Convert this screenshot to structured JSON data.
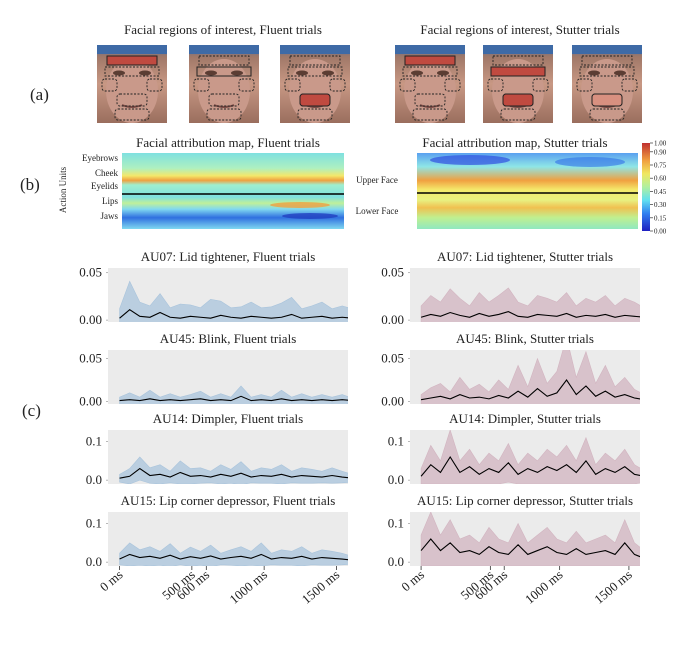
{
  "panel_labels": [
    "(a)",
    "(b)",
    "(c)"
  ],
  "face_titles": [
    "Facial regions of interest, Fluent trials",
    "Facial regions of interest, Stutter trials"
  ],
  "heatmaps": [
    {
      "title": "Facial attribution map, Fluent trials",
      "y_label": "Action Units",
      "row_labels": [
        "Eyebrows",
        "Cheek",
        "Eyelids",
        "Lips",
        "Jaws"
      ]
    },
    {
      "title": "Facial attribution map, Stutter trials",
      "row_labels": [
        "Upper Face",
        "Lower Face"
      ]
    }
  ],
  "colorbar": {
    "ticks": [
      {
        "value": 1,
        "label": "1.00"
      },
      {
        "value": 0.9,
        "label": "0.90"
      },
      {
        "value": 0.75,
        "label": "0.75"
      },
      {
        "value": 0.6,
        "label": "0.60"
      },
      {
        "value": 0.45,
        "label": "0.45"
      },
      {
        "value": 0.3,
        "label": "0.30"
      },
      {
        "value": 0.15,
        "label": "0.15"
      },
      {
        "value": 0,
        "label": "0.00"
      }
    ],
    "lim": [
      0,
      1
    ]
  },
  "chart_data": [
    {
      "type": "line",
      "title": "AU07: Lid tightener, Fluent trials",
      "x": [
        0,
        70,
        140,
        210,
        280,
        350,
        420,
        490,
        560,
        630,
        700,
        770,
        840,
        910,
        980,
        1050,
        1120,
        1190,
        1260,
        1330,
        1400,
        1470,
        1540,
        1610
      ],
      "xlim": [
        -80,
        1580
      ],
      "ylim": [
        -0.002,
        0.055
      ],
      "yticks": [
        {
          "value": 0,
          "label": "0.00"
        },
        {
          "value": 0.05,
          "label": "0.05"
        }
      ],
      "series": [
        {
          "color": "#000000",
          "band_color": "#a9c4dc",
          "values": [
            0.002,
            0.011,
            0.004,
            0.003,
            0.008,
            0.003,
            0.002,
            0.004,
            0.003,
            0.002,
            0.005,
            0.003,
            0.002,
            0.004,
            0.003,
            0.002,
            0.003,
            0.006,
            0.002,
            0.003,
            0.004,
            0.002,
            0.003,
            0.002
          ],
          "error": [
            0.01,
            0.03,
            0.015,
            0.012,
            0.02,
            0.01,
            0.015,
            0.012,
            0.01,
            0.02,
            0.015,
            0.01,
            0.012,
            0.015,
            0.01,
            0.012,
            0.015,
            0.018,
            0.01,
            0.012,
            0.015,
            0.01,
            0.012,
            0.01
          ]
        }
      ]
    },
    {
      "type": "line",
      "title": "AU07: Lid tightener, Stutter trials",
      "x": [
        0,
        70,
        140,
        210,
        280,
        350,
        420,
        490,
        560,
        630,
        700,
        770,
        840,
        910,
        980,
        1050,
        1120,
        1190,
        1260,
        1330,
        1400,
        1470,
        1540,
        1610
      ],
      "xlim": [
        -80,
        1580
      ],
      "ylim": [
        -0.002,
        0.055
      ],
      "yticks": [
        {
          "value": 0,
          "label": "0.00"
        },
        {
          "value": 0.05,
          "label": "0.05"
        }
      ],
      "series": [
        {
          "color": "#000000",
          "band_color": "#d2b4c0",
          "values": [
            0.003,
            0.006,
            0.004,
            0.008,
            0.005,
            0.003,
            0.007,
            0.004,
            0.006,
            0.009,
            0.004,
            0.003,
            0.006,
            0.005,
            0.004,
            0.007,
            0.003,
            0.005,
            0.004,
            0.006,
            0.003,
            0.005,
            0.004,
            0.003
          ],
          "error": [
            0.012,
            0.02,
            0.015,
            0.025,
            0.018,
            0.012,
            0.022,
            0.015,
            0.02,
            0.025,
            0.015,
            0.012,
            0.02,
            0.018,
            0.015,
            0.022,
            0.012,
            0.018,
            0.015,
            0.02,
            0.012,
            0.018,
            0.015,
            0.01
          ]
        }
      ]
    },
    {
      "type": "line",
      "title": "AU45: Blink, Fluent trials",
      "x": [
        0,
        70,
        140,
        210,
        280,
        350,
        420,
        490,
        560,
        630,
        700,
        770,
        840,
        910,
        980,
        1050,
        1120,
        1190,
        1260,
        1330,
        1400,
        1470,
        1540,
        1610
      ],
      "xlim": [
        -80,
        1580
      ],
      "ylim": [
        -0.003,
        0.06
      ],
      "yticks": [
        {
          "value": 0,
          "label": "0.00"
        },
        {
          "value": 0.05,
          "label": "0.05"
        }
      ],
      "series": [
        {
          "color": "#000000",
          "band_color": "#a9c4dc",
          "values": [
            0.001,
            0.002,
            0.001,
            0.003,
            0.001,
            0.002,
            0.001,
            0.002,
            0.003,
            0.001,
            0.002,
            0.001,
            0.006,
            0.001,
            0.002,
            0.001,
            0.003,
            0.001,
            0.002,
            0.001,
            0.002,
            0.001,
            0.002,
            0.001
          ],
          "error": [
            0.004,
            0.008,
            0.004,
            0.01,
            0.004,
            0.007,
            0.004,
            0.006,
            0.009,
            0.004,
            0.007,
            0.004,
            0.012,
            0.004,
            0.006,
            0.004,
            0.01,
            0.004,
            0.007,
            0.004,
            0.006,
            0.004,
            0.006,
            0.003
          ]
        }
      ]
    },
    {
      "type": "line",
      "title": "AU45: Blink, Stutter trials",
      "x": [
        0,
        70,
        140,
        210,
        280,
        350,
        420,
        490,
        560,
        630,
        700,
        770,
        840,
        910,
        980,
        1050,
        1120,
        1190,
        1260,
        1330,
        1400,
        1470,
        1540,
        1610
      ],
      "xlim": [
        -80,
        1580
      ],
      "ylim": [
        -0.003,
        0.06
      ],
      "yticks": [
        {
          "value": 0,
          "label": "0.00"
        },
        {
          "value": 0.05,
          "label": "0.05"
        }
      ],
      "series": [
        {
          "color": "#000000",
          "band_color": "#d2b4c0",
          "values": [
            0.002,
            0.004,
            0.006,
            0.003,
            0.008,
            0.004,
            0.005,
            0.003,
            0.007,
            0.004,
            0.012,
            0.005,
            0.015,
            0.006,
            0.01,
            0.025,
            0.008,
            0.018,
            0.006,
            0.012,
            0.005,
            0.008,
            0.004,
            0.002
          ],
          "error": [
            0.006,
            0.012,
            0.015,
            0.008,
            0.02,
            0.01,
            0.015,
            0.008,
            0.018,
            0.01,
            0.03,
            0.012,
            0.035,
            0.015,
            0.025,
            0.05,
            0.02,
            0.04,
            0.015,
            0.03,
            0.012,
            0.02,
            0.01,
            0.006
          ]
        }
      ]
    },
    {
      "type": "line",
      "title": "AU14: Dimpler, Fluent trials",
      "x": [
        0,
        70,
        140,
        210,
        280,
        350,
        420,
        490,
        560,
        630,
        700,
        770,
        840,
        910,
        980,
        1050,
        1120,
        1190,
        1260,
        1330,
        1400,
        1470,
        1540,
        1610
      ],
      "xlim": [
        -80,
        1580
      ],
      "ylim": [
        -0.01,
        0.13
      ],
      "yticks": [
        {
          "value": 0,
          "label": "0.0"
        },
        {
          "value": 0.1,
          "label": "0.1"
        }
      ],
      "series": [
        {
          "color": "#000000",
          "band_color": "#a9c4dc",
          "values": [
            0.005,
            0.01,
            0.03,
            0.012,
            0.015,
            0.008,
            0.02,
            0.01,
            0.012,
            0.008,
            0.015,
            0.01,
            0.018,
            0.008,
            0.012,
            0.01,
            0.015,
            0.008,
            0.012,
            0.01,
            0.008,
            0.012,
            0.008,
            0.005
          ],
          "error": [
            0.01,
            0.02,
            0.03,
            0.02,
            0.025,
            0.015,
            0.03,
            0.02,
            0.02,
            0.015,
            0.025,
            0.018,
            0.03,
            0.015,
            0.02,
            0.018,
            0.025,
            0.015,
            0.02,
            0.018,
            0.015,
            0.02,
            0.015,
            0.01
          ]
        }
      ]
    },
    {
      "type": "line",
      "title": "AU14: Dimpler, Stutter trials",
      "x": [
        0,
        70,
        140,
        210,
        280,
        350,
        420,
        490,
        560,
        630,
        700,
        770,
        840,
        910,
        980,
        1050,
        1120,
        1190,
        1260,
        1330,
        1400,
        1470,
        1540,
        1610
      ],
      "xlim": [
        -80,
        1580
      ],
      "ylim": [
        -0.01,
        0.13
      ],
      "yticks": [
        {
          "value": 0,
          "label": "0.0"
        },
        {
          "value": 0.1,
          "label": "0.1"
        }
      ],
      "series": [
        {
          "color": "#000000",
          "band_color": "#d2b4c0",
          "values": [
            0.01,
            0.04,
            0.02,
            0.06,
            0.02,
            0.035,
            0.015,
            0.03,
            0.02,
            0.045,
            0.015,
            0.03,
            0.02,
            0.035,
            0.025,
            0.04,
            0.02,
            0.05,
            0.015,
            0.03,
            0.02,
            0.035,
            0.015,
            0.01
          ],
          "error": [
            0.02,
            0.05,
            0.03,
            0.07,
            0.03,
            0.045,
            0.025,
            0.04,
            0.03,
            0.05,
            0.025,
            0.04,
            0.03,
            0.045,
            0.035,
            0.05,
            0.03,
            0.06,
            0.025,
            0.04,
            0.03,
            0.045,
            0.025,
            0.015
          ]
        }
      ]
    },
    {
      "type": "line",
      "title": "AU15: Lip corner depressor, Fluent trials",
      "x": [
        0,
        70,
        140,
        210,
        280,
        350,
        420,
        490,
        560,
        630,
        700,
        770,
        840,
        910,
        980,
        1050,
        1120,
        1190,
        1260,
        1330,
        1400,
        1470,
        1540,
        1610
      ],
      "xlim": [
        -80,
        1580
      ],
      "ylim": [
        -0.01,
        0.13
      ],
      "yticks": [
        {
          "value": 0,
          "label": "0.0"
        },
        {
          "value": 0.1,
          "label": "0.1"
        }
      ],
      "xticks": [
        {
          "value": 0,
          "label": "0 ms"
        },
        {
          "value": 500,
          "label": "500 ms"
        },
        {
          "value": 600,
          "label": "600 ms"
        },
        {
          "value": 1000,
          "label": "1000 ms"
        },
        {
          "value": 1500,
          "label": "1500 ms"
        }
      ],
      "series": [
        {
          "color": "#000000",
          "band_color": "#a9c4dc",
          "values": [
            0.008,
            0.02,
            0.012,
            0.015,
            0.01,
            0.018,
            0.008,
            0.014,
            0.01,
            0.016,
            0.008,
            0.012,
            0.015,
            0.01,
            0.02,
            0.008,
            0.012,
            0.01,
            0.015,
            0.008,
            0.012,
            0.01,
            0.008,
            0.005
          ],
          "error": [
            0.015,
            0.03,
            0.02,
            0.025,
            0.018,
            0.03,
            0.015,
            0.025,
            0.018,
            0.028,
            0.015,
            0.02,
            0.025,
            0.018,
            0.03,
            0.015,
            0.02,
            0.018,
            0.025,
            0.015,
            0.02,
            0.018,
            0.015,
            0.01
          ]
        }
      ]
    },
    {
      "type": "line",
      "title": "AU15: Lip corner depressor, Stutter trials",
      "x": [
        0,
        70,
        140,
        210,
        280,
        350,
        420,
        490,
        560,
        630,
        700,
        770,
        840,
        910,
        980,
        1050,
        1120,
        1190,
        1260,
        1330,
        1400,
        1470,
        1540,
        1610
      ],
      "xlim": [
        -80,
        1580
      ],
      "ylim": [
        -0.01,
        0.13
      ],
      "yticks": [
        {
          "value": 0,
          "label": "0.0"
        },
        {
          "value": 0.1,
          "label": "0.1"
        }
      ],
      "xticks": [
        {
          "value": 0,
          "label": "0 ms"
        },
        {
          "value": 500,
          "label": "500 ms"
        },
        {
          "value": 600,
          "label": "600 ms"
        },
        {
          "value": 1000,
          "label": "1000 ms"
        },
        {
          "value": 1500,
          "label": "1500 ms"
        }
      ],
      "series": [
        {
          "color": "#000000",
          "band_color": "#d2b4c0",
          "values": [
            0.03,
            0.06,
            0.03,
            0.05,
            0.025,
            0.03,
            0.02,
            0.04,
            0.025,
            0.02,
            0.045,
            0.02,
            0.03,
            0.04,
            0.025,
            0.02,
            0.035,
            0.02,
            0.025,
            0.03,
            0.02,
            0.05,
            0.02,
            0.01
          ],
          "error": [
            0.04,
            0.07,
            0.04,
            0.06,
            0.035,
            0.04,
            0.03,
            0.05,
            0.035,
            0.03,
            0.055,
            0.03,
            0.04,
            0.05,
            0.035,
            0.03,
            0.045,
            0.03,
            0.035,
            0.04,
            0.03,
            0.06,
            0.03,
            0.02
          ]
        }
      ]
    }
  ]
}
